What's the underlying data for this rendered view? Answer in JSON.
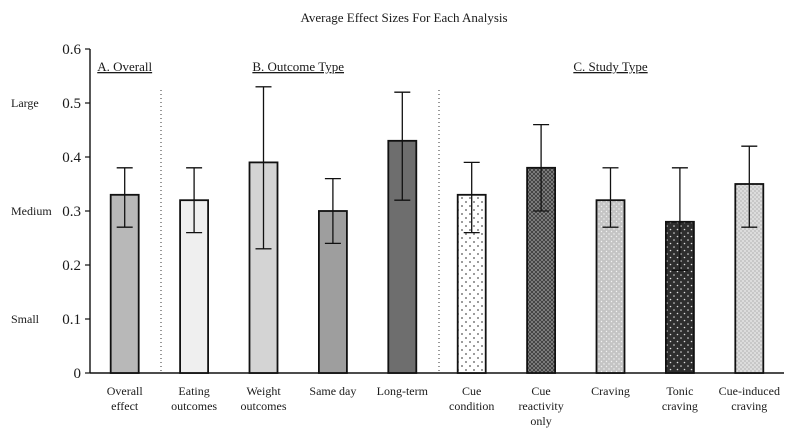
{
  "chart_data": {
    "type": "bar",
    "title": "Average Effect Sizes For Each Analysis",
    "xlabel": "",
    "ylabel": "",
    "ylim": [
      0,
      0.6
    ],
    "yticks": [
      "0",
      "0.1",
      "0.2",
      "0.3",
      "0.4",
      "0.5",
      "0.6"
    ],
    "effect_size_levels": [
      {
        "label": "Small",
        "value": 0.1
      },
      {
        "label": "Medium",
        "value": 0.3
      },
      {
        "label": "Large",
        "value": 0.5
      }
    ],
    "sections": [
      {
        "label": "A. Overall",
        "categories": [
          0
        ]
      },
      {
        "label": "B. Outcome Type",
        "categories": [
          1,
          2,
          3,
          4
        ]
      },
      {
        "label": "C. Study Type",
        "categories": [
          5,
          6,
          7,
          8,
          9
        ]
      }
    ],
    "categories": [
      [
        "Overall",
        "effect"
      ],
      [
        "Eating",
        "outcomes"
      ],
      [
        "Weight",
        "outcomes"
      ],
      [
        "Same day"
      ],
      [
        "Long-term"
      ],
      [
        "Cue",
        "condition"
      ],
      [
        "Cue",
        "reactivity",
        "only"
      ],
      [
        "Craving"
      ],
      [
        "Tonic",
        "craving"
      ],
      [
        "Cue-induced",
        "craving"
      ]
    ],
    "values": [
      0.33,
      0.32,
      0.39,
      0.3,
      0.43,
      0.33,
      0.38,
      0.32,
      0.28,
      0.35
    ],
    "error_low": [
      0.27,
      0.26,
      0.23,
      0.24,
      0.32,
      0.26,
      0.3,
      0.27,
      0.19,
      0.27
    ],
    "error_high": [
      0.38,
      0.38,
      0.53,
      0.36,
      0.52,
      0.39,
      0.46,
      0.38,
      0.38,
      0.42
    ],
    "bar_fills": [
      "#b8b8b8",
      "#efefef",
      "#d4d4d4",
      "#9e9e9e",
      "#6e6e6e",
      "dots-light",
      "crosshatch",
      "dots-grey",
      "dots-dark",
      "dots-stipple"
    ],
    "grid": false,
    "legend": "none"
  }
}
